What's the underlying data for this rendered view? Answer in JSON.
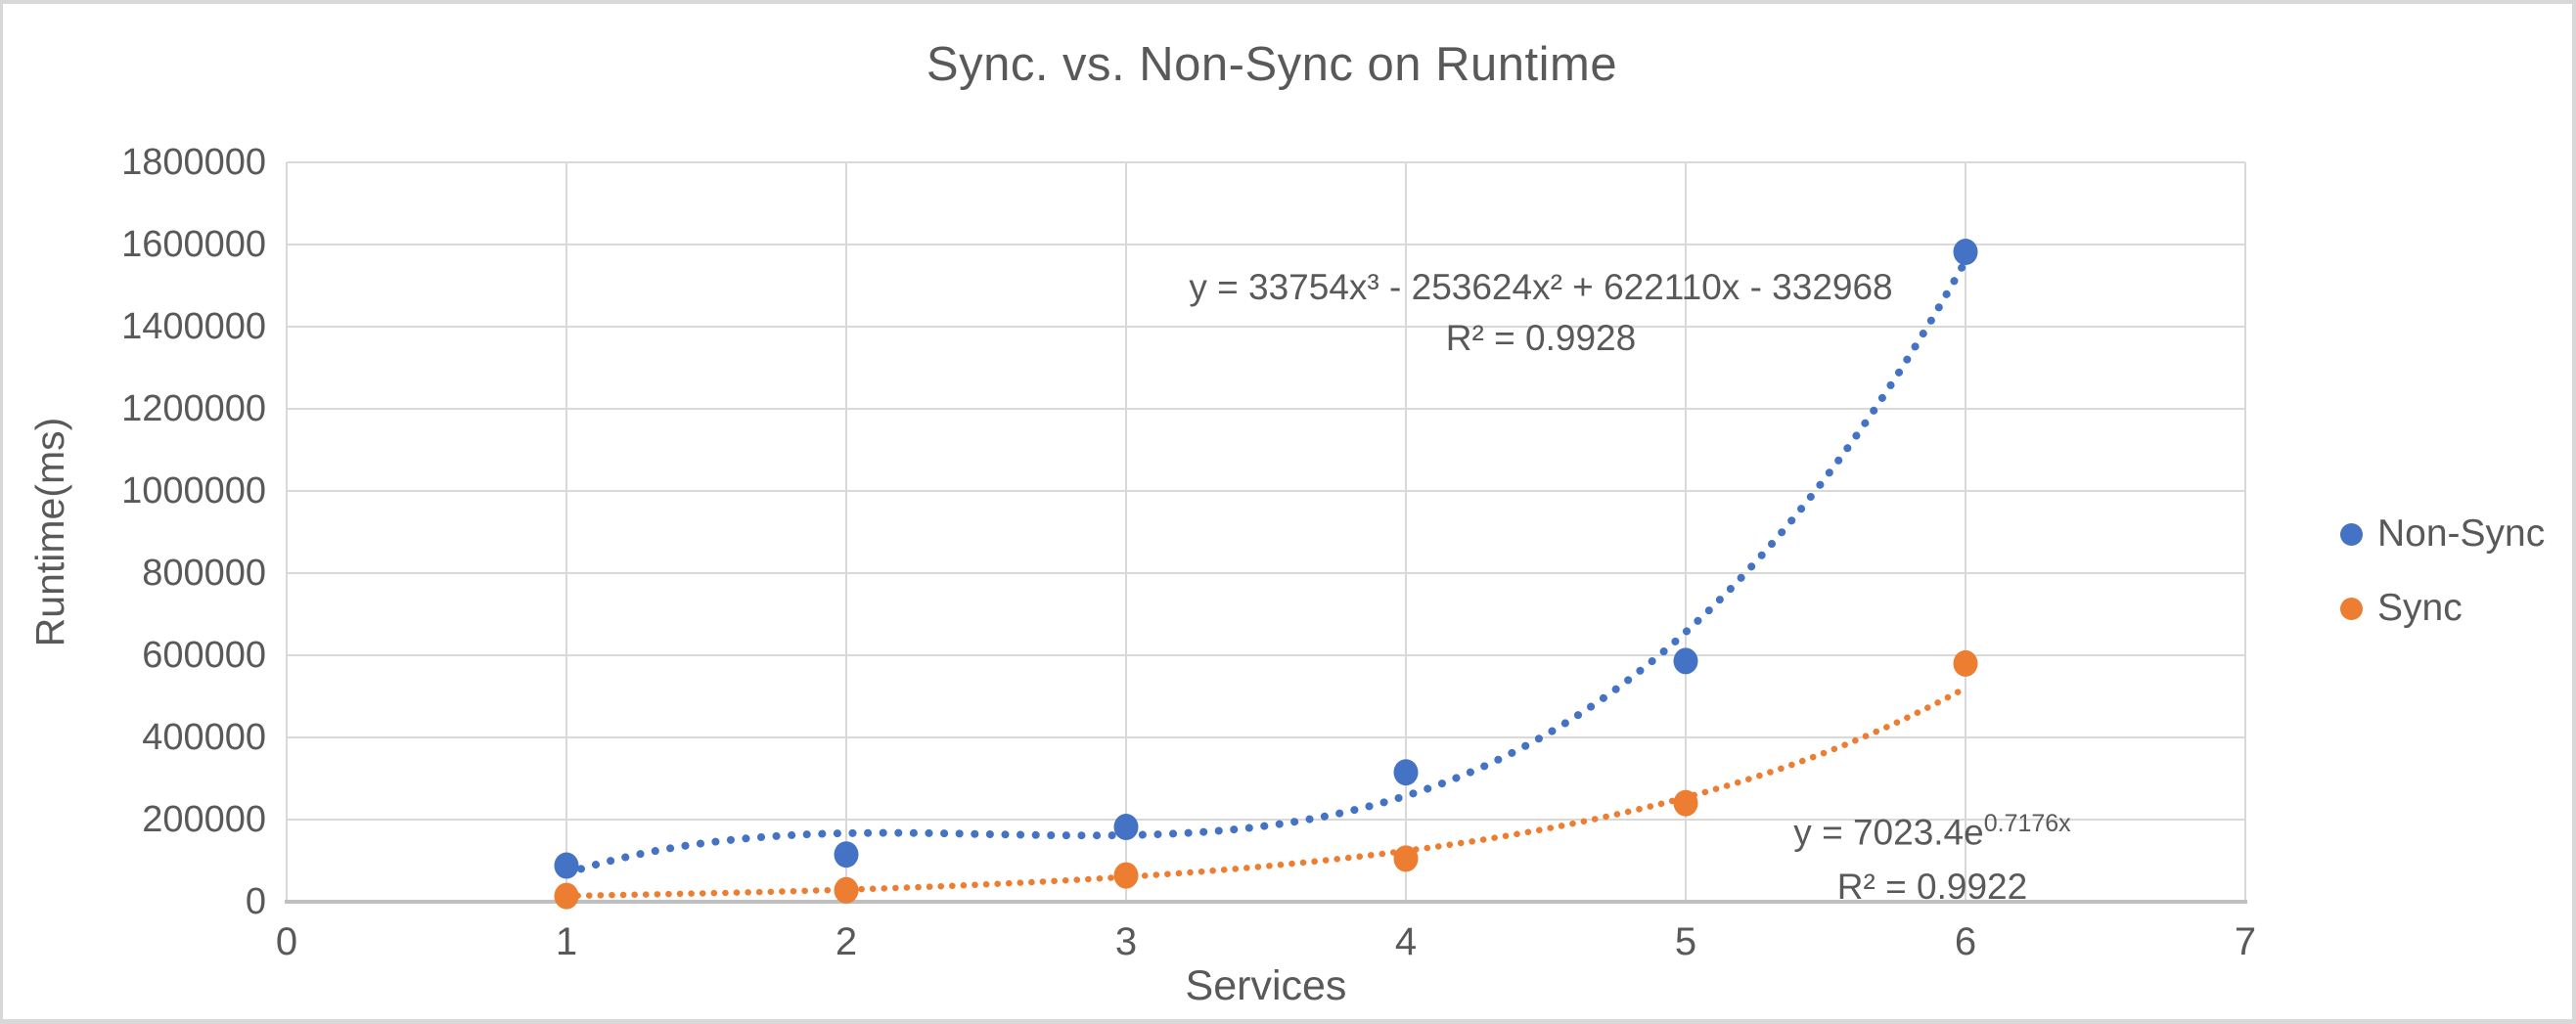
{
  "frame": {
    "background": "#d8d8d8",
    "surface": "#ffffff"
  },
  "chart_data": {
    "type": "scatter",
    "title": "Sync. vs. Non-Sync on Runtime",
    "xlabel": "Services",
    "ylabel": "Runtime(ms)",
    "xlim": [
      0,
      7
    ],
    "ylim": [
      0,
      1800000
    ],
    "x_ticks": [
      0,
      1,
      2,
      3,
      4,
      5,
      6,
      7
    ],
    "y_ticks": [
      0,
      200000,
      400000,
      600000,
      800000,
      1000000,
      1200000,
      1400000,
      1600000,
      1800000
    ],
    "grid": true,
    "legend_position": "right",
    "series": [
      {
        "name": "Non-Sync",
        "color": "#4472C4",
        "x": [
          1,
          2,
          3,
          4,
          5,
          6
        ],
        "y": [
          88000,
          115000,
          182000,
          315000,
          586000,
          1582000
        ],
        "trendline": {
          "kind": "cubic",
          "coeffs": [
            33754,
            -253624,
            622110,
            -332968
          ],
          "label_line1": "y = 33754x³ - 253624x² + 622110x - 332968",
          "label_line2": "R² = 0.9928"
        }
      },
      {
        "name": "Sync",
        "color": "#ED7D31",
        "x": [
          1,
          2,
          3,
          4,
          5,
          6
        ],
        "y": [
          14000,
          28000,
          64000,
          105000,
          240000,
          580000
        ],
        "trendline": {
          "kind": "exponential",
          "a": 7023.4,
          "b": 0.7176,
          "label_prefix": "y = 7023.4e",
          "label_exponent": "0.7176x",
          "label_line2": "R² = 0.9922"
        }
      }
    ],
    "colors": {
      "grid": "#D9D9D9",
      "axis": "#BFBFBF",
      "text": "#595959"
    }
  }
}
